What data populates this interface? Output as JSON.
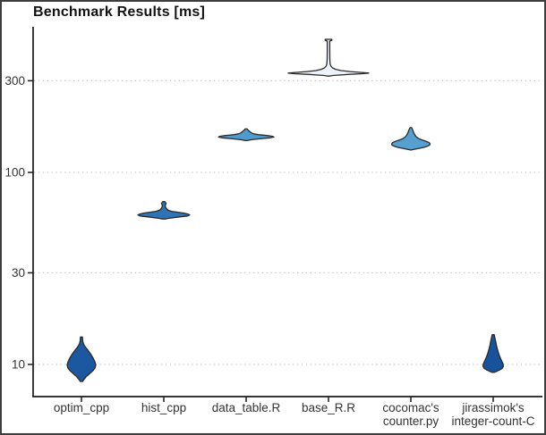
{
  "colors": {
    "background": "#ffffff",
    "border": "#3e3e3e",
    "axis": "#1a1a1a",
    "grid": "#c6c6c6",
    "outline": "#2b2b2b",
    "text": "#333333",
    "title": "#111111"
  },
  "chart_data": {
    "type": "violin",
    "title": "Benchmark Results [ms]",
    "xlabel": "",
    "ylabel": "",
    "yscale": "log10",
    "ylim": [
      8,
      560
    ],
    "grid": "horizontal dotted lines at each y tick",
    "legend": "none",
    "yticks": [
      {
        "value": 10,
        "label": "10"
      },
      {
        "value": 30,
        "label": "30"
      },
      {
        "value": 100,
        "label": "100"
      },
      {
        "value": 300,
        "label": "300"
      }
    ],
    "categories": [
      "optim_cpp",
      "hist_cpp",
      "data_table.R",
      "base_R.R",
      "cocomac's counter.py",
      "jirassimok's integer-count-C"
    ],
    "series": [
      {
        "name": "optim_cpp",
        "label_lines": [
          "optim_cpp"
        ],
        "fill": "#1c589f",
        "summary_ms": {
          "min": 8.1,
          "peak_density": 9.9,
          "max": 13.9
        },
        "profile_ms_halfwidth": [
          [
            13.9,
            1.1
          ],
          [
            13.3,
            1.4
          ],
          [
            12.8,
            2.2
          ],
          [
            12.3,
            4.5
          ],
          [
            11.8,
            7.5
          ],
          [
            11.3,
            10.5
          ],
          [
            10.8,
            13
          ],
          [
            10.3,
            15
          ],
          [
            9.95,
            16
          ],
          [
            9.6,
            15.2
          ],
          [
            9.25,
            12.5
          ],
          [
            8.95,
            9
          ],
          [
            8.65,
            5.5
          ],
          [
            8.35,
            2.8
          ],
          [
            8.15,
            1.2
          ]
        ]
      },
      {
        "name": "hist_cpp",
        "label_lines": [
          "hist_cpp"
        ],
        "fill": "#2f73b5",
        "summary_ms": {
          "min": 57,
          "peak_density": 60,
          "max": 70
        },
        "profile_ms_halfwidth": [
          [
            70.5,
            0.9
          ],
          [
            69.8,
            1.8
          ],
          [
            69.0,
            2.6
          ],
          [
            68.2,
            2.2
          ],
          [
            67.4,
            1.6
          ],
          [
            66.2,
            1.8
          ],
          [
            65.2,
            2.6
          ],
          [
            64.2,
            3.6
          ],
          [
            63.4,
            5.5
          ],
          [
            62.7,
            9
          ],
          [
            62.1,
            15
          ],
          [
            61.4,
            22
          ],
          [
            60.7,
            27
          ],
          [
            60.0,
            29
          ],
          [
            59.3,
            26.5
          ],
          [
            58.7,
            19
          ],
          [
            58.1,
            11
          ],
          [
            57.6,
            5
          ],
          [
            57.2,
            1.5
          ]
        ]
      },
      {
        "name": "data_table.R",
        "label_lines": [
          "data_table.R"
        ],
        "fill": "#4f9bcb",
        "summary_ms": {
          "min": 146,
          "peak_density": 153,
          "max": 168
        },
        "profile_ms_halfwidth": [
          [
            168.5,
            1
          ],
          [
            166.5,
            2
          ],
          [
            164.5,
            3.2
          ],
          [
            162.5,
            4.6
          ],
          [
            160.5,
            6
          ],
          [
            158.8,
            8.5
          ],
          [
            157.2,
            14
          ],
          [
            155.6,
            23
          ],
          [
            154.2,
            29.5
          ],
          [
            152.8,
            31
          ],
          [
            151.4,
            27
          ],
          [
            150.0,
            18
          ],
          [
            148.7,
            9.5
          ],
          [
            147.6,
            4.5
          ],
          [
            146.8,
            1.8
          ],
          [
            146.4,
            0.9
          ]
        ]
      },
      {
        "name": "base_R.R",
        "label_lines": [
          "base_R.R"
        ],
        "fill": "#eef3fa",
        "summary_ms": {
          "min": 317,
          "peak_density": 329,
          "max": 493
        },
        "profile_ms_halfwidth": [
          [
            493,
            3.6
          ],
          [
            488,
            3.8
          ],
          [
            483,
            1.4
          ],
          [
            430,
            1.4
          ],
          [
            390,
            1.5
          ],
          [
            368,
            1.8
          ],
          [
            358,
            2.6
          ],
          [
            350,
            4.5
          ],
          [
            344,
            8
          ],
          [
            339,
            14
          ],
          [
            335,
            24
          ],
          [
            331.5,
            37
          ],
          [
            329,
            45
          ],
          [
            326.5,
            38
          ],
          [
            324,
            24
          ],
          [
            321.5,
            12
          ],
          [
            319.5,
            5
          ],
          [
            318,
            2
          ],
          [
            317.3,
            0.9
          ]
        ]
      },
      {
        "name": "cocomac's counter.py",
        "label_lines": [
          "cocomac's",
          "counter.py"
        ],
        "fill": "#55a0d0",
        "summary_ms": {
          "min": 131,
          "peak_density": 140,
          "max": 171
        },
        "profile_ms_halfwidth": [
          [
            171,
            0.9
          ],
          [
            168.5,
            1.6
          ],
          [
            166,
            2.2
          ],
          [
            163,
            2.8
          ],
          [
            159.5,
            3.6
          ],
          [
            156,
            4.8
          ],
          [
            152.5,
            6.5
          ],
          [
            149.5,
            9.5
          ],
          [
            147,
            13.5
          ],
          [
            144.8,
            17.5
          ],
          [
            142.8,
            20.5
          ],
          [
            140.8,
            21.5
          ],
          [
            138.8,
            21
          ],
          [
            136.8,
            18.5
          ],
          [
            134.8,
            14
          ],
          [
            133.2,
            8.5
          ],
          [
            132,
            4
          ],
          [
            131.2,
            1.6
          ],
          [
            130.8,
            0.8
          ]
        ]
      },
      {
        "name": "jirassimok's integer-count-C",
        "label_lines": [
          "jirassimok's",
          "integer-count-C"
        ],
        "fill": "#17529b",
        "summary_ms": {
          "min": 9.1,
          "peak_density": 9.9,
          "max": 14.3
        },
        "profile_ms_halfwidth": [
          [
            14.3,
            1.1
          ],
          [
            13.9,
            1.7
          ],
          [
            13.5,
            2.3
          ],
          [
            13.1,
            2.9
          ],
          [
            12.6,
            3.6
          ],
          [
            12.1,
            4.5
          ],
          [
            11.6,
            5.6
          ],
          [
            11.1,
            7
          ],
          [
            10.7,
            8.4
          ],
          [
            10.35,
            9.8
          ],
          [
            10.05,
            11
          ],
          [
            9.8,
            11.4
          ],
          [
            9.55,
            10.2
          ],
          [
            9.35,
            7
          ],
          [
            9.2,
            3.6
          ],
          [
            9.1,
            1.4
          ]
        ]
      }
    ]
  }
}
